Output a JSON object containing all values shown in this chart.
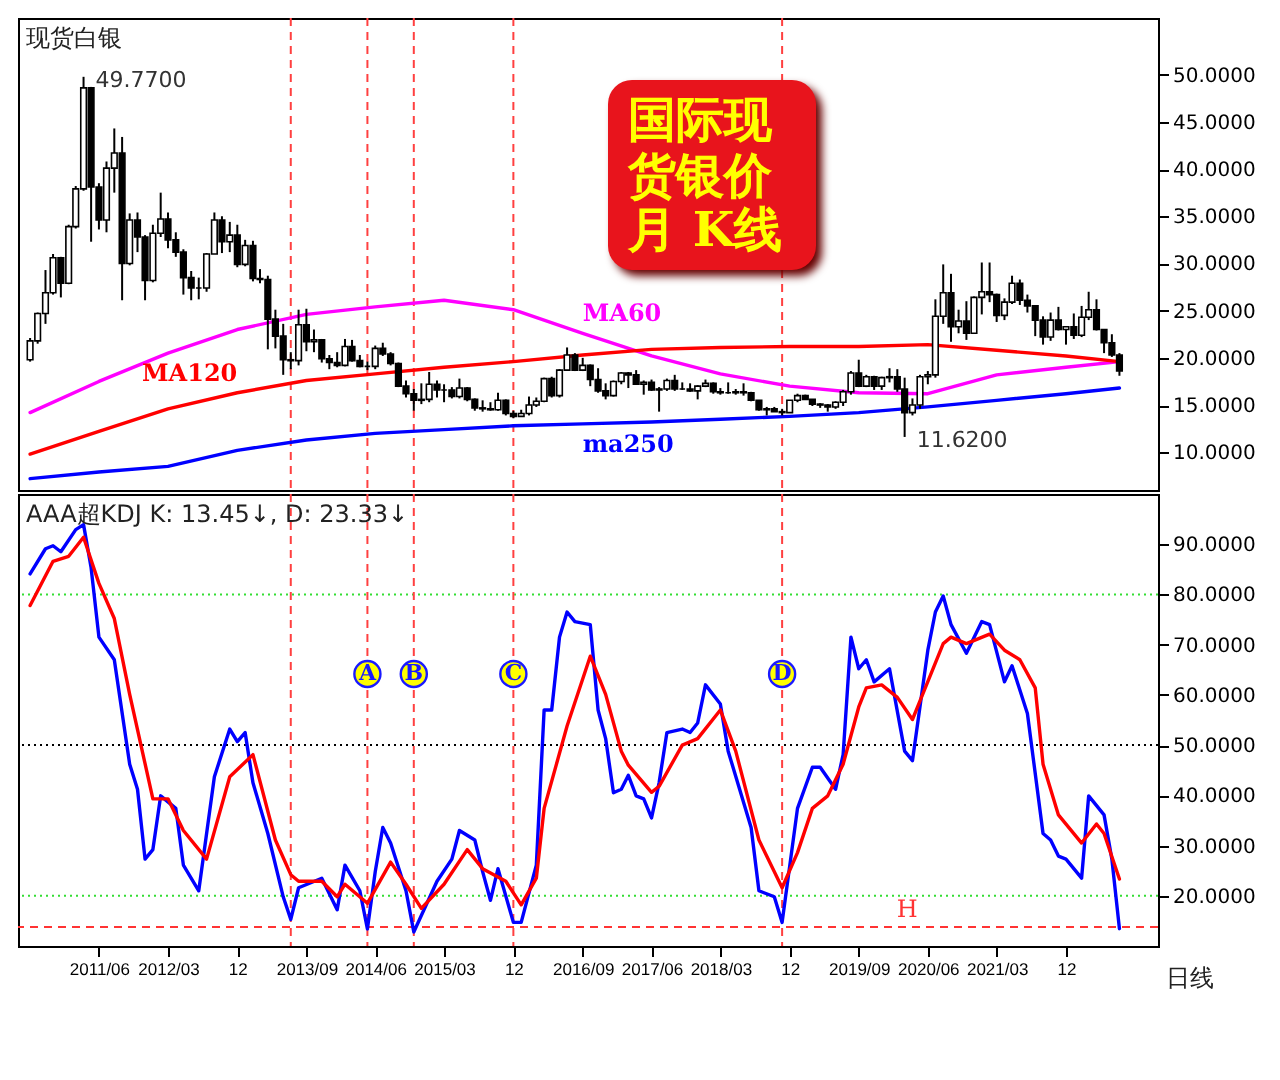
{
  "chart_data": [
    {
      "type": "candlestick",
      "title": "国际现货银价月 K线",
      "annotations": [
        "现货白银",
        {
          "text": "49.7700",
          "x": "2011-04",
          "y": 49.77
        },
        {
          "text": "11.6200",
          "x": "2020-03",
          "y": 11.62
        }
      ],
      "x": [
        "2010-09",
        "2010-10",
        "2010-11",
        "2010-12",
        "2011-01",
        "2011-02",
        "2011-03",
        "2011-04",
        "2011-05",
        "2011-06",
        "2011-07",
        "2011-08",
        "2011-09",
        "2011-10",
        "2011-11",
        "2011-12",
        "2012-01",
        "2012-02",
        "2012-03",
        "2012-04",
        "2012-05",
        "2012-06",
        "2012-07",
        "2012-08",
        "2012-09",
        "2012-10",
        "2012-11",
        "2012-12",
        "2013-01",
        "2013-02",
        "2013-03",
        "2013-04",
        "2013-05",
        "2013-06",
        "2013-07",
        "2013-08",
        "2013-09",
        "2013-10",
        "2013-11",
        "2013-12",
        "2014-01",
        "2014-02",
        "2014-03",
        "2014-04",
        "2014-05",
        "2014-06",
        "2014-07",
        "2014-08",
        "2014-09",
        "2014-10",
        "2014-11",
        "2014-12",
        "2015-01",
        "2015-02",
        "2015-03",
        "2015-04",
        "2015-05",
        "2015-06",
        "2015-07",
        "2015-08",
        "2015-09",
        "2015-10",
        "2015-11",
        "2015-12",
        "2016-01",
        "2016-02",
        "2016-03",
        "2016-04",
        "2016-05",
        "2016-06",
        "2016-07",
        "2016-08",
        "2016-09",
        "2016-10",
        "2016-11",
        "2016-12",
        "2017-01",
        "2017-02",
        "2017-03",
        "2017-04",
        "2017-05",
        "2017-06",
        "2017-07",
        "2017-08",
        "2017-09",
        "2017-10",
        "2017-11",
        "2017-12",
        "2018-01",
        "2018-02",
        "2018-03",
        "2018-04",
        "2018-05",
        "2018-06",
        "2018-07",
        "2018-08",
        "2018-09",
        "2018-10",
        "2018-11",
        "2018-12",
        "2019-01",
        "2019-02",
        "2019-03",
        "2019-04",
        "2019-05",
        "2019-06",
        "2019-07",
        "2019-08",
        "2019-09",
        "2019-10",
        "2019-11",
        "2019-12",
        "2020-01",
        "2020-02",
        "2020-03",
        "2020-04",
        "2020-05",
        "2020-06",
        "2020-07",
        "2020-08",
        "2020-09",
        "2020-10",
        "2020-11",
        "2020-12",
        "2021-01",
        "2021-02",
        "2021-03",
        "2021-04",
        "2021-05",
        "2021-06",
        "2021-07",
        "2021-08",
        "2021-09",
        "2021-10",
        "2021-11",
        "2021-12",
        "2022-01",
        "2022-02",
        "2022-03",
        "2022-04",
        "2022-05",
        "2022-06",
        "2022-07"
      ],
      "ohlc": [
        [
          19.8,
          22.1,
          19.6,
          21.8
        ],
        [
          21.8,
          24.8,
          21.5,
          24.7
        ],
        [
          24.7,
          29.3,
          23.6,
          26.9
        ],
        [
          26.9,
          31.0,
          26.7,
          30.6
        ],
        [
          30.6,
          30.7,
          26.4,
          27.9
        ],
        [
          27.9,
          34.1,
          27.8,
          33.9
        ],
        [
          33.9,
          38.2,
          33.7,
          37.9
        ],
        [
          37.9,
          49.77,
          37.7,
          48.6
        ],
        [
          48.6,
          48.7,
          32.3,
          38.1
        ],
        [
          38.1,
          38.5,
          33.6,
          34.6
        ],
        [
          34.6,
          40.8,
          33.3,
          40.1
        ],
        [
          40.1,
          44.3,
          37.5,
          41.7
        ],
        [
          41.7,
          43.4,
          26.1,
          30.0
        ],
        [
          30.0,
          35.3,
          29.8,
          34.6
        ],
        [
          34.6,
          35.4,
          31.2,
          32.8
        ],
        [
          32.8,
          33.0,
          26.1,
          28.2
        ],
        [
          28.2,
          34.1,
          28.0,
          33.2
        ],
        [
          33.2,
          37.5,
          32.8,
          34.7
        ],
        [
          34.7,
          35.4,
          31.6,
          32.5
        ],
        [
          32.5,
          33.3,
          30.7,
          31.2
        ],
        [
          31.2,
          31.5,
          26.7,
          28.5
        ],
        [
          28.5,
          29.2,
          26.1,
          27.4
        ],
        [
          27.4,
          28.5,
          26.2,
          27.4
        ],
        [
          27.4,
          31.1,
          27.0,
          31.0
        ],
        [
          31.0,
          35.4,
          31.0,
          34.6
        ],
        [
          34.6,
          35.0,
          31.1,
          32.3
        ],
        [
          32.3,
          34.4,
          31.2,
          33.0
        ],
        [
          33.0,
          34.1,
          29.6,
          29.9
        ],
        [
          29.9,
          32.5,
          29.7,
          31.9
        ],
        [
          31.9,
          32.4,
          28.1,
          28.4
        ],
        [
          28.4,
          29.4,
          27.9,
          28.3
        ],
        [
          28.3,
          28.7,
          20.9,
          24.1
        ],
        [
          24.1,
          25.1,
          21.0,
          22.3
        ],
        [
          22.3,
          23.6,
          18.2,
          19.8
        ],
        [
          19.8,
          20.6,
          18.8,
          19.7
        ],
        [
          19.7,
          25.1,
          19.2,
          23.5
        ],
        [
          23.5,
          25.2,
          20.7,
          21.7
        ],
        [
          21.7,
          23.0,
          20.6,
          21.9
        ],
        [
          21.9,
          22.0,
          19.5,
          19.9
        ],
        [
          19.9,
          20.3,
          18.8,
          19.5
        ],
        [
          19.5,
          20.6,
          19.0,
          19.2
        ],
        [
          19.2,
          22.0,
          19.1,
          21.2
        ],
        [
          21.2,
          21.9,
          19.6,
          19.7
        ],
        [
          19.7,
          20.3,
          19.0,
          19.1
        ],
        [
          19.1,
          19.6,
          18.7,
          19.1
        ],
        [
          19.1,
          21.3,
          18.8,
          21.0
        ],
        [
          21.0,
          21.6,
          20.2,
          20.4
        ],
        [
          20.4,
          20.6,
          19.2,
          19.4
        ],
        [
          19.4,
          19.5,
          16.9,
          17.0
        ],
        [
          17.0,
          17.6,
          15.8,
          16.2
        ],
        [
          16.2,
          16.7,
          14.4,
          15.5
        ],
        [
          15.5,
          17.3,
          15.1,
          15.6
        ],
        [
          15.6,
          18.5,
          15.3,
          17.2
        ],
        [
          17.2,
          17.6,
          15.8,
          16.6
        ],
        [
          16.6,
          17.2,
          15.3,
          16.6
        ],
        [
          16.6,
          16.9,
          15.7,
          15.9
        ],
        [
          15.9,
          17.8,
          15.7,
          16.8
        ],
        [
          16.8,
          16.9,
          15.4,
          15.6
        ],
        [
          15.6,
          15.7,
          14.4,
          14.7
        ],
        [
          14.7,
          15.5,
          14.3,
          14.6
        ],
        [
          14.6,
          15.3,
          14.4,
          14.5
        ],
        [
          14.5,
          16.3,
          14.4,
          15.5
        ],
        [
          15.5,
          15.6,
          13.9,
          14.1
        ],
        [
          14.1,
          14.4,
          13.6,
          13.8
        ],
        [
          13.8,
          14.5,
          13.8,
          14.1
        ],
        [
          14.1,
          15.9,
          13.9,
          15.0
        ],
        [
          15.0,
          15.8,
          14.8,
          15.4
        ],
        [
          15.4,
          17.9,
          15.3,
          17.8
        ],
        [
          17.8,
          18.0,
          15.8,
          16.0
        ],
        [
          16.0,
          18.8,
          15.8,
          18.7
        ],
        [
          18.7,
          21.1,
          18.7,
          20.3
        ],
        [
          20.3,
          20.5,
          18.6,
          18.7
        ],
        [
          18.7,
          20.0,
          18.6,
          19.2
        ],
        [
          19.2,
          19.3,
          17.0,
          17.7
        ],
        [
          17.7,
          18.9,
          16.3,
          16.5
        ],
        [
          16.5,
          17.3,
          15.6,
          16.0
        ],
        [
          16.0,
          17.6,
          15.9,
          17.5
        ],
        [
          17.5,
          18.5,
          17.2,
          18.4
        ],
        [
          18.4,
          18.5,
          16.8,
          18.2
        ],
        [
          18.2,
          18.7,
          17.2,
          17.2
        ],
        [
          17.2,
          17.6,
          16.1,
          17.4
        ],
        [
          17.4,
          17.7,
          16.5,
          16.6
        ],
        [
          16.6,
          16.9,
          14.3,
          16.7
        ],
        [
          16.7,
          17.8,
          16.5,
          17.6
        ],
        [
          17.6,
          18.2,
          16.5,
          16.7
        ],
        [
          16.7,
          17.4,
          16.6,
          16.7
        ],
        [
          16.7,
          17.3,
          16.4,
          16.5
        ],
        [
          16.5,
          17.1,
          15.6,
          17.0
        ],
        [
          17.0,
          17.7,
          16.9,
          17.3
        ],
        [
          17.3,
          17.4,
          16.2,
          16.4
        ],
        [
          16.4,
          16.8,
          16.1,
          16.3
        ],
        [
          16.3,
          17.4,
          16.2,
          16.3
        ],
        [
          16.3,
          16.7,
          16.1,
          16.4
        ],
        [
          16.4,
          17.3,
          16.0,
          16.3
        ],
        [
          16.3,
          16.4,
          15.4,
          15.5
        ],
        [
          15.5,
          15.5,
          14.4,
          14.5
        ],
        [
          14.5,
          14.8,
          13.9,
          14.6
        ],
        [
          14.6,
          14.8,
          14.3,
          14.3
        ],
        [
          14.3,
          14.6,
          13.9,
          14.2
        ],
        [
          14.2,
          15.5,
          14.2,
          15.5
        ],
        [
          15.5,
          16.2,
          15.3,
          16.0
        ],
        [
          16.0,
          16.1,
          15.6,
          15.6
        ],
        [
          15.6,
          15.6,
          14.9,
          15.1
        ],
        [
          15.1,
          15.2,
          14.7,
          15.0
        ],
        [
          15.0,
          15.1,
          14.3,
          14.8
        ],
        [
          14.8,
          15.4,
          14.6,
          15.3
        ],
        [
          15.3,
          16.6,
          14.9,
          16.4
        ],
        [
          16.4,
          18.6,
          16.1,
          18.4
        ],
        [
          18.4,
          19.8,
          16.9,
          17.0
        ],
        [
          17.0,
          18.2,
          16.9,
          18.0
        ],
        [
          18.0,
          18.1,
          16.6,
          17.0
        ],
        [
          17.0,
          18.0,
          16.6,
          17.9
        ],
        [
          17.9,
          18.9,
          17.4,
          18.0
        ],
        [
          18.0,
          18.8,
          16.4,
          16.7
        ],
        [
          16.7,
          17.9,
          11.62,
          14.2
        ],
        [
          14.2,
          15.7,
          13.9,
          15.0
        ],
        [
          15.0,
          18.2,
          14.6,
          18.0
        ],
        [
          18.0,
          18.6,
          17.2,
          18.2
        ],
        [
          18.2,
          26.2,
          17.9,
          24.4
        ],
        [
          24.4,
          29.9,
          23.6,
          26.9
        ],
        [
          26.9,
          28.9,
          21.7,
          23.3
        ],
        [
          23.3,
          25.1,
          22.6,
          23.9
        ],
        [
          23.9,
          26.0,
          21.9,
          22.6
        ],
        [
          22.6,
          26.5,
          22.6,
          26.4
        ],
        [
          26.4,
          30.1,
          24.6,
          27.0
        ],
        [
          27.0,
          30.1,
          25.9,
          26.7
        ],
        [
          26.7,
          26.8,
          23.8,
          24.5
        ],
        [
          24.5,
          26.3,
          24.0,
          25.9
        ],
        [
          25.9,
          28.7,
          25.7,
          27.9
        ],
        [
          27.9,
          28.3,
          25.6,
          26.1
        ],
        [
          26.1,
          26.7,
          24.8,
          25.5
        ],
        [
          25.5,
          25.6,
          22.3,
          24.0
        ],
        [
          24.0,
          24.4,
          21.4,
          22.2
        ],
        [
          22.2,
          24.8,
          21.8,
          24.0
        ],
        [
          24.0,
          25.4,
          22.9,
          23.0
        ],
        [
          23.0,
          23.3,
          21.4,
          23.3
        ],
        [
          23.3,
          24.7,
          22.0,
          22.4
        ],
        [
          22.4,
          25.5,
          22.2,
          24.3
        ],
        [
          24.3,
          27.0,
          24.0,
          25.1
        ],
        [
          25.1,
          26.2,
          22.9,
          23.0
        ],
        [
          23.0,
          23.0,
          20.5,
          21.6
        ],
        [
          21.6,
          22.5,
          20.1,
          20.3
        ],
        [
          20.3,
          20.5,
          18.1,
          18.6
        ]
      ],
      "series": [
        {
          "name": "MA60",
          "type": "line",
          "color": "#ff00ff",
          "x": [
            "2010-09",
            "2011-06",
            "2012-03",
            "2012-12",
            "2013-09",
            "2014-06",
            "2015-03",
            "2015-12",
            "2016-09",
            "2017-06",
            "2018-03",
            "2018-12",
            "2019-09",
            "2020-06",
            "2021-03",
            "2021-12",
            "2022-07"
          ],
          "values": [
            14.2,
            17.5,
            20.5,
            23,
            24.6,
            25.4,
            26.1,
            25.1,
            22.6,
            20.2,
            18.3,
            17,
            16.3,
            16.2,
            18.2,
            19,
            19.6
          ]
        },
        {
          "name": "MA120",
          "type": "line",
          "color": "#ff0000",
          "x": [
            "2010-09",
            "2011-06",
            "2012-03",
            "2012-12",
            "2013-09",
            "2014-06",
            "2015-03",
            "2015-12",
            "2016-09",
            "2017-06",
            "2018-03",
            "2018-12",
            "2019-09",
            "2020-06",
            "2021-03",
            "2021-12",
            "2022-07"
          ],
          "values": [
            9.8,
            12.2,
            14.6,
            16.3,
            17.6,
            18.3,
            19,
            19.6,
            20.3,
            20.9,
            21.1,
            21.2,
            21.2,
            21.4,
            20.8,
            20.2,
            19.6
          ]
        },
        {
          "name": "ma250",
          "type": "line",
          "color": "#0000ff",
          "x": [
            "2010-09",
            "2011-06",
            "2012-03",
            "2012-12",
            "2013-09",
            "2014-06",
            "2015-03",
            "2015-12",
            "2016-09",
            "2017-06",
            "2018-03",
            "2018-12",
            "2019-09",
            "2020-06",
            "2021-03",
            "2021-12",
            "2022-07"
          ],
          "values": [
            7.2,
            7.9,
            8.5,
            10.2,
            11.3,
            12,
            12.4,
            12.8,
            13,
            13.2,
            13.5,
            13.8,
            14.2,
            14.8,
            15.5,
            16.2,
            16.8
          ]
        }
      ],
      "xlim": [
        "2010-07-15",
        "2022-12-01"
      ],
      "ylim": [
        6,
        56
      ],
      "yticks": [
        {
          "value": 10,
          "label": "10.0000"
        },
        {
          "value": 15,
          "label": "15.0000"
        },
        {
          "value": 20,
          "label": "20.0000"
        },
        {
          "value": 25,
          "label": "25.0000"
        },
        {
          "value": 30,
          "label": "30.0000"
        },
        {
          "value": 35,
          "label": "35.0000"
        },
        {
          "value": 40,
          "label": "40.0000"
        },
        {
          "value": 45,
          "label": "45.0000"
        },
        {
          "value": 50,
          "label": "50.0000"
        }
      ],
      "tick_labels": "y",
      "ref_lines": [
        {
          "axis": "x",
          "value": "2013-07",
          "color": "#ff4040",
          "line_style": "dashed"
        },
        {
          "axis": "x",
          "value": "2014-05",
          "color": "#ff4040",
          "line_style": "dashed"
        },
        {
          "axis": "x",
          "value": "2014-11",
          "color": "#ff4040",
          "line_style": "dashed"
        },
        {
          "axis": "x",
          "value": "2015-12",
          "color": "#ff4040",
          "line_style": "dashed"
        },
        {
          "axis": "x",
          "value": "2018-11",
          "color": "#ff4040",
          "line_style": "dashed"
        }
      ]
    },
    {
      "type": "line",
      "annotations": [
        "AAA超KDJ K: 13.45↓, D: 23.33↓",
        "日线"
      ],
      "series": [
        {
          "color": "#0000ff",
          "x": [
            "2010-09",
            "2010-11",
            "2010-12",
            "2011-01",
            "2011-03",
            "2011-04",
            "2011-05",
            "2011-06",
            "2011-08",
            "2011-10",
            "2011-11",
            "2011-12",
            "2012-01",
            "2012-02",
            "2012-04",
            "2012-05",
            "2012-07",
            "2012-09",
            "2012-11",
            "2012-12",
            "2013-01",
            "2013-02",
            "2013-04",
            "2013-06",
            "2013-07",
            "2013-08",
            "2013-11",
            "2014-01",
            "2014-02",
            "2014-04",
            "2014-05",
            "2014-06",
            "2014-07",
            "2014-08",
            "2014-10",
            "2014-11",
            "2015-02",
            "2015-04",
            "2015-05",
            "2015-07",
            "2015-08",
            "2015-09",
            "2015-10",
            "2015-12",
            "2016-01",
            "2016-03",
            "2016-04",
            "2016-05",
            "2016-06",
            "2016-07",
            "2016-08",
            "2016-10",
            "2016-11",
            "2016-12",
            "2017-01",
            "2017-02",
            "2017-03",
            "2017-04",
            "2017-05",
            "2017-06",
            "2017-07",
            "2017-08",
            "2017-10",
            "2017-11",
            "2017-12",
            "2018-01",
            "2018-03",
            "2018-04",
            "2018-07",
            "2018-08",
            "2018-10",
            "2018-11",
            "2019-01",
            "2019-03",
            "2019-04",
            "2019-06",
            "2019-07",
            "2019-08",
            "2019-09",
            "2019-10",
            "2019-11",
            "2020-01",
            "2020-03",
            "2020-04",
            "2020-06",
            "2020-07",
            "2020-08",
            "2020-09",
            "2020-11",
            "2021-01",
            "2021-02",
            "2021-04",
            "2021-05",
            "2021-07",
            "2021-09",
            "2021-10",
            "2021-11",
            "2021-12",
            "2022-02",
            "2022-03",
            "2022-05",
            "2022-06",
            "2022-07"
          ],
          "values": [
            84.1,
            89.1,
            89.7,
            88.5,
            92.9,
            93.9,
            85.3,
            71.5,
            67,
            46.2,
            41.2,
            27.3,
            29.2,
            39.9,
            37.4,
            26.1,
            21,
            43.7,
            53.2,
            50.7,
            52.5,
            42.5,
            32.4,
            19.8,
            15.3,
            21.6,
            23.5,
            17.2,
            26.1,
            21,
            13.4,
            24.8,
            33.6,
            30.5,
            21,
            12.8,
            22.9,
            27.3,
            33,
            31.1,
            24.8,
            19.1,
            25.4,
            14.7,
            14.7,
            26.1,
            57,
            57,
            71.5,
            76.5,
            74.6,
            74,
            57,
            51.3,
            40.5,
            41.2,
            44,
            39.9,
            39.3,
            35.5,
            42.5,
            52.5,
            53.2,
            52.5,
            54.4,
            62,
            58.2,
            48.8,
            33.6,
            21,
            19.8,
            14.7,
            37.4,
            45.6,
            45.6,
            41.2,
            48.1,
            71.5,
            65.2,
            67,
            62.6,
            65.2,
            48.8,
            46.9,
            68.9,
            76.5,
            79.7,
            74,
            68.3,
            74.6,
            74,
            62.6,
            65.8,
            56.3,
            32.4,
            31.1,
            27.9,
            27.3,
            23.5,
            39.9,
            36.1,
            27.3,
            13.45
          ]
        },
        {
          "color": "#ff0000",
          "x": [
            "2010-09",
            "2010-12",
            "2011-02",
            "2011-04",
            "2011-06",
            "2011-08",
            "2011-10",
            "2012-01",
            "2012-03",
            "2012-05",
            "2012-08",
            "2012-11",
            "2013-02",
            "2013-05",
            "2013-07",
            "2013-08",
            "2013-11",
            "2014-01",
            "2014-02",
            "2014-05",
            "2014-08",
            "2014-10",
            "2014-12",
            "2015-03",
            "2015-06",
            "2015-08",
            "2015-11",
            "2016-01",
            "2016-03",
            "2016-04",
            "2016-07",
            "2016-10",
            "2016-12",
            "2017-02",
            "2017-03",
            "2017-06",
            "2017-07",
            "2017-10",
            "2017-12",
            "2018-03",
            "2018-05",
            "2018-08",
            "2018-11",
            "2019-01",
            "2019-03",
            "2019-05",
            "2019-07",
            "2019-09",
            "2019-10",
            "2019-12",
            "2020-02",
            "2020-04",
            "2020-05",
            "2020-08",
            "2020-09",
            "2020-11",
            "2021-02",
            "2021-04",
            "2021-06",
            "2021-08",
            "2021-09",
            "2021-11",
            "2022-02",
            "2022-04",
            "2022-05",
            "2022-07"
          ],
          "values": [
            77.8,
            86.6,
            87.6,
            91.4,
            82.2,
            75.2,
            60.1,
            39.3,
            39.3,
            33,
            27.3,
            43.7,
            48.1,
            31.1,
            24.2,
            22.9,
            22.9,
            19.8,
            22.3,
            18.5,
            26.7,
            22.3,
            17.5,
            22.3,
            29.2,
            25.4,
            22.9,
            18.2,
            23.5,
            37.4,
            53.8,
            67.7,
            60.1,
            48.8,
            46,
            40.6,
            41.8,
            50,
            51.3,
            57,
            48.8,
            31.1,
            21.6,
            28.6,
            37.4,
            39.9,
            46.2,
            57.6,
            61.4,
            62,
            59.5,
            55.1,
            58.8,
            70.2,
            71.5,
            70.2,
            72.1,
            68.9,
            67,
            61.4,
            46.2,
            36.1,
            30.5,
            34.3,
            32.4,
            23.33
          ]
        }
      ],
      "xlim": [
        "2010-07-15",
        "2022-12-01"
      ],
      "xticks": [
        {
          "value": "2011-06",
          "label": "2011/06"
        },
        {
          "value": "2012-03",
          "label": "2012/03"
        },
        {
          "value": "2012-12",
          "label": "12"
        },
        {
          "value": "2013-09",
          "label": "2013/09"
        },
        {
          "value": "2014-06",
          "label": "2014/06"
        },
        {
          "value": "2015-03",
          "label": "2015/03"
        },
        {
          "value": "2015-12",
          "label": "12"
        },
        {
          "value": "2016-09",
          "label": "2016/09"
        },
        {
          "value": "2017-06",
          "label": "2017/06"
        },
        {
          "value": "2018-03",
          "label": "2018/03"
        },
        {
          "value": "2018-12",
          "label": "12"
        },
        {
          "value": "2019-09",
          "label": "2019/09"
        },
        {
          "value": "2020-06",
          "label": "2020/06"
        },
        {
          "value": "2021-03",
          "label": "2021/03"
        },
        {
          "value": "2021-12",
          "label": "12"
        }
      ],
      "ylim": [
        10,
        100
      ],
      "yticks": [
        {
          "value": 20,
          "label": "20.0000"
        },
        {
          "value": 30,
          "label": "30.0000"
        },
        {
          "value": 40,
          "label": "40.0000"
        },
        {
          "value": 50,
          "label": "50.0000"
        },
        {
          "value": 60,
          "label": "60.0000"
        },
        {
          "value": 70,
          "label": "70.0000"
        },
        {
          "value": 80,
          "label": "80.0000"
        },
        {
          "value": 90,
          "label": "90.0000"
        }
      ],
      "ref_lines": [
        {
          "axis": "y",
          "value": 80,
          "color": "#33dd33",
          "line_style": "dotted"
        },
        {
          "axis": "y",
          "value": 50,
          "color": "#000000",
          "line_style": "dotted"
        },
        {
          "axis": "y",
          "value": 20,
          "color": "#33dd33",
          "line_style": "dotted"
        },
        {
          "axis": "y",
          "value": 13.8,
          "label": "H",
          "color": "#ff3333",
          "line_style": "dashed"
        },
        {
          "axis": "x",
          "value": "2013-07",
          "color": "#ff4040",
          "line_style": "dashed"
        },
        {
          "axis": "x",
          "value": "2014-05",
          "label": "A",
          "color": "#ff4040",
          "line_style": "dashed"
        },
        {
          "axis": "x",
          "value": "2014-11",
          "label": "B",
          "color": "#ff4040",
          "line_style": "dashed"
        },
        {
          "axis": "x",
          "value": "2015-12",
          "label": "C",
          "color": "#ff4040",
          "line_style": "dashed"
        },
        {
          "axis": "x",
          "value": "2018-11",
          "label": "D",
          "color": "#ff4040",
          "line_style": "dashed"
        }
      ]
    }
  ]
}
